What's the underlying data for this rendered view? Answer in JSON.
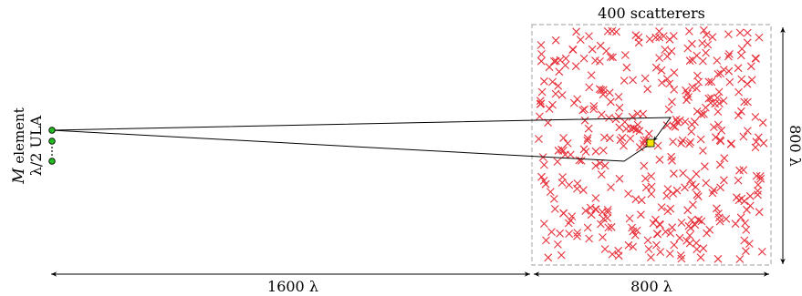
{
  "labels": {
    "scatter_title": "400 scatterers",
    "array_line1_italic": "M",
    "array_line1_rest": " element",
    "array_line2": "λ/2 ULA",
    "vertical_extent": "800 λ",
    "bottom_left_distance": "1600 λ",
    "bottom_right_distance": "800 λ"
  },
  "colors": {
    "scatterer": "#e8323c",
    "region_border": "#b0b0b0",
    "antenna_fill": "#22bb22",
    "target_fill": "#f5e400",
    "path": "#000000"
  },
  "scene": {
    "num_scatterers": 400,
    "num_antennas_drawn": 3,
    "array_has_ellipsis": true,
    "path_marker": "target square inside scatterer region"
  }
}
